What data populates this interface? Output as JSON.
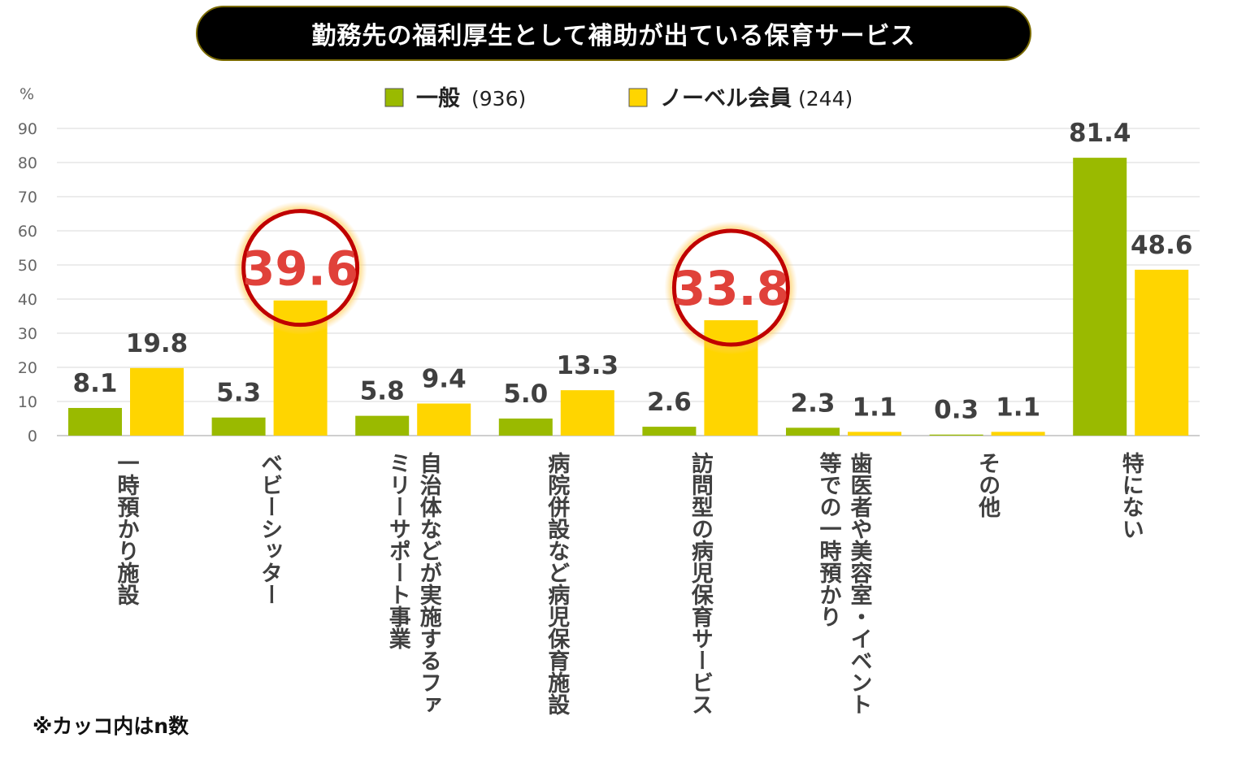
{
  "chart_data": {
    "type": "bar",
    "title": "勤務先の福利厚生として補助が出ている保育サービス",
    "ylabel": "%",
    "ylim": [
      0,
      90
    ],
    "yticks": [
      0,
      10,
      20,
      30,
      40,
      50,
      60,
      70,
      80,
      90
    ],
    "grid": true,
    "legend_position": "top",
    "categories": [
      [
        "一時預かり施設"
      ],
      [
        "ベビーシッター"
      ],
      [
        "自治体などが実施するファ",
        "ミリーサポート事業"
      ],
      [
        "病院併設など病児保育施設"
      ],
      [
        "訪問型の病児保育サービス"
      ],
      [
        "歯医者や美容室・イベント",
        "等での一時預かり"
      ],
      [
        "その他"
      ],
      [
        "特にない"
      ]
    ],
    "series": [
      {
        "name": "一般",
        "n": "(936)",
        "color": "#9aba00",
        "values": [
          8.1,
          5.3,
          5.8,
          5.0,
          2.6,
          2.3,
          0.3,
          81.4
        ],
        "labels": [
          "8.1",
          "5.3",
          "5.8",
          "5.0",
          "2.6",
          "2.3",
          "0.3",
          "81.4"
        ]
      },
      {
        "name": "ノーベル会員",
        "n": "(244)",
        "color": "#ffd500",
        "values": [
          19.8,
          39.6,
          9.4,
          13.3,
          33.8,
          1.1,
          1.1,
          48.6
        ],
        "labels": [
          "19.8",
          "39.6",
          "9.4",
          "13.3",
          "33.8",
          "1.1",
          "1.1",
          "48.6"
        ]
      }
    ],
    "highlights": [
      {
        "series": 1,
        "index": 1
      },
      {
        "series": 1,
        "index": 4
      }
    ],
    "highlight_color": "#c00000",
    "highlight_label_color": "#e0413a"
  },
  "note": "※カッコ内はn数"
}
